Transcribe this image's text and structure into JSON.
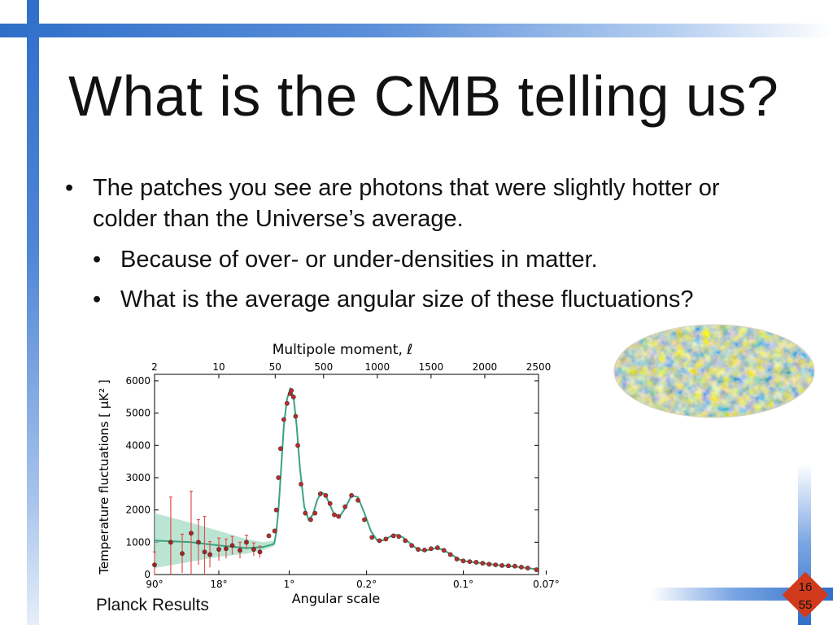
{
  "slide": {
    "title": "What is the CMB telling us?",
    "bullets": [
      {
        "text": "The patches you see are photons that were slightly hotter or colder than the Universe’s average."
      },
      {
        "text": "Because of over- or under-densities in matter."
      },
      {
        "text": "What is the average angular size of these fluctuations?"
      }
    ],
    "bullet_glyph": "•",
    "caption": "Planck Results",
    "page_current": "16",
    "page_total": "55",
    "accent_color": "#2f6fc9",
    "badge_color": "#d13a1c"
  },
  "chart_data": {
    "type": "scatter",
    "top_axis_label": "Multipole moment, ℓ",
    "top_ticks": [
      "2",
      "10",
      "50",
      "500",
      "1000",
      "1500",
      "2000",
      "2500"
    ],
    "bottom_axis_label": "Angular scale",
    "bottom_ticks": [
      "90°",
      "18°",
      "1°",
      "0.2°",
      "0.1°",
      "0.07°"
    ],
    "ylabel": "Temperature fluctuations [ μK² ]",
    "y_ticks": [
      "0",
      "1000",
      "2000",
      "3000",
      "4000",
      "5000",
      "6000"
    ],
    "ylim": [
      0,
      6200
    ],
    "grid": false,
    "series": [
      {
        "kind": "low_ell_points",
        "x": [
          2,
          3,
          4,
          5,
          6,
          7,
          8,
          10,
          12,
          14,
          17,
          20,
          24,
          28
        ],
        "y": [
          300,
          1000,
          650,
          1280,
          1000,
          700,
          620,
          780,
          800,
          900,
          750,
          1000,
          780,
          700
        ],
        "err": [
          400,
          1400,
          600,
          1300,
          700,
          1100,
          400,
          350,
          300,
          280,
          250,
          220,
          200,
          180
        ]
      },
      {
        "kind": "high_ell_points",
        "x": [
          35,
          45,
          60,
          80,
          100,
          130,
          160,
          190,
          200,
          220,
          240,
          260,
          290,
          330,
          380,
          420,
          470,
          520,
          560,
          600,
          640,
          700,
          760,
          820,
          880,
          950,
          1020,
          1080,
          1150,
          1200,
          1260,
          1320,
          1380,
          1440,
          1500,
          1560,
          1620,
          1680,
          1740,
          1800,
          1860,
          1920,
          1980,
          2040,
          2100,
          2160,
          2220,
          2280,
          2340,
          2400,
          2480
        ],
        "y": [
          1200,
          1350,
          2000,
          3000,
          3900,
          4800,
          5300,
          5600,
          5700,
          5500,
          4900,
          4000,
          2800,
          1900,
          1700,
          1900,
          2500,
          2450,
          2200,
          1850,
          1800,
          2100,
          2450,
          2300,
          1700,
          1150,
          1050,
          1100,
          1200,
          1180,
          1050,
          900,
          780,
          760,
          800,
          830,
          750,
          620,
          480,
          420,
          400,
          380,
          350,
          320,
          300,
          280,
          270,
          260,
          230,
          200,
          150
        ]
      }
    ],
    "model_curve": {
      "x": [
        2,
        5,
        10,
        20,
        30,
        40,
        60,
        80,
        100,
        130,
        160,
        190,
        220,
        250,
        280,
        320,
        360,
        400,
        440,
        480,
        520,
        560,
        600,
        650,
        700,
        760,
        820,
        880,
        940,
        1000,
        1060,
        1120,
        1180,
        1240,
        1300,
        1360,
        1420,
        1480,
        1540,
        1600,
        1680,
        1760,
        1840,
        1920,
        2000,
        2100,
        2200,
        2300,
        2400,
        2500
      ],
      "y": [
        1050,
        1000,
        900,
        820,
        850,
        950,
        1300,
        2000,
        3000,
        4600,
        5450,
        5750,
        5500,
        4600,
        3300,
        2100,
        1700,
        1850,
        2300,
        2550,
        2450,
        2150,
        1850,
        1800,
        2050,
        2450,
        2400,
        1900,
        1350,
        1050,
        1060,
        1180,
        1230,
        1150,
        980,
        820,
        740,
        760,
        820,
        780,
        640,
        470,
        400,
        370,
        340,
        300,
        270,
        240,
        200,
        160
      ]
    },
    "cosmic_variance_band": {
      "x": [
        2,
        5,
        10,
        20,
        30,
        40
      ],
      "y_low": [
        200,
        400,
        550,
        650,
        750,
        880
      ],
      "y_high": [
        1900,
        1600,
        1350,
        1100,
        1000,
        1050
      ]
    }
  }
}
